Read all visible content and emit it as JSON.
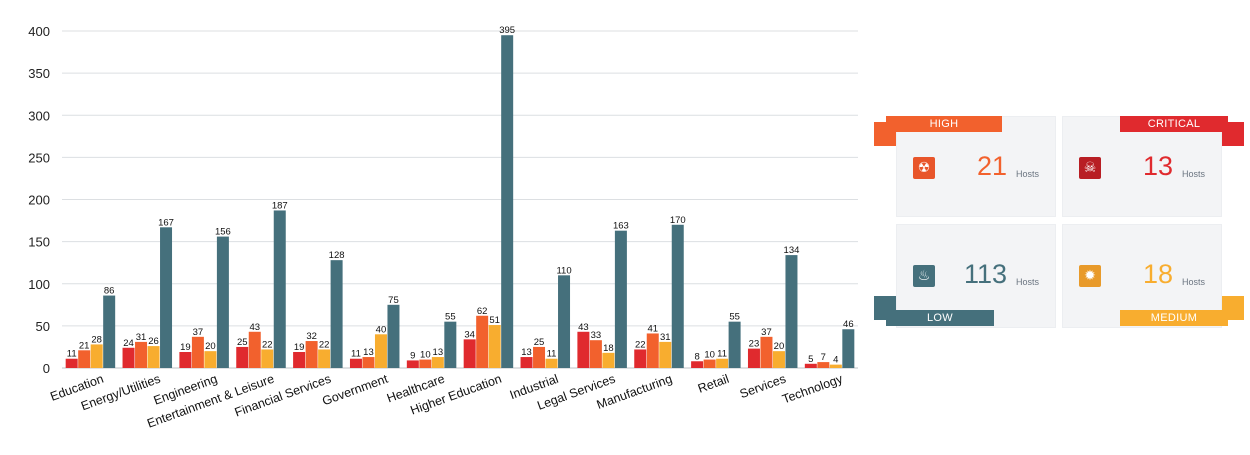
{
  "chart_data": {
    "type": "bar",
    "categories": [
      "Education",
      "Energy/Utilities",
      "Engineering",
      "Entertainment & Leisure",
      "Financial Services",
      "Government",
      "Healthcare",
      "Higher Education",
      "Industrial",
      "Legal Services",
      "Manufacturing",
      "Retail",
      "Services",
      "Technology"
    ],
    "series": [
      {
        "color": "#e02a2e",
        "values": [
          11,
          24,
          19,
          25,
          19,
          11,
          9,
          34,
          13,
          43,
          22,
          8,
          23,
          5
        ]
      },
      {
        "color": "#f2612d",
        "values": [
          21,
          31,
          37,
          43,
          32,
          13,
          10,
          62,
          25,
          33,
          41,
          10,
          37,
          7
        ]
      },
      {
        "color": "#f8ad2f",
        "values": [
          28,
          26,
          20,
          22,
          22,
          40,
          13,
          51,
          11,
          18,
          31,
          11,
          20,
          4
        ]
      },
      {
        "color": "#45707c",
        "values": [
          86,
          167,
          156,
          187,
          128,
          75,
          55,
          395,
          110,
          163,
          170,
          55,
          134,
          46
        ]
      }
    ],
    "yticks": [
      "0",
      "50",
      "100",
      "150",
      "200",
      "250",
      "300",
      "350",
      "400"
    ],
    "ylim": [
      0,
      400
    ],
    "grid": true,
    "data_labels": true
  },
  "summary": {
    "hosts_label": "Hosts",
    "cards": [
      {
        "key": "high",
        "label": "HIGH",
        "count": "21",
        "color": "#f2612d",
        "icon": "radiation-icon"
      },
      {
        "key": "critical",
        "label": "CRITICAL",
        "count": "13",
        "color": "#e02a2e",
        "icon": "skull-icon"
      },
      {
        "key": "low",
        "label": "LOW",
        "count": "113",
        "color": "#45707c",
        "icon": "flame-icon"
      },
      {
        "key": "medium",
        "label": "MEDIUM",
        "count": "18",
        "color": "#f8ad2f",
        "icon": "fire-icon"
      }
    ]
  }
}
